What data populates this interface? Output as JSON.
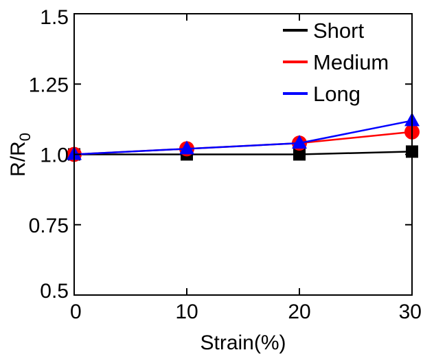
{
  "chart_data": {
    "type": "line",
    "xlabel": "Strain(%)",
    "ylabel": {
      "main": "R/R",
      "sub": "0"
    },
    "xlim": [
      0,
      30
    ],
    "ylim": [
      0.5,
      1.5
    ],
    "xticks": [
      0,
      10,
      20,
      30
    ],
    "xtick_labels": [
      "0",
      "10",
      "20",
      "30"
    ],
    "yticks": [
      0.5,
      0.75,
      1.0,
      1.25,
      1.5
    ],
    "ytick_labels": [
      "0.5",
      "0.75",
      "1.0",
      "1.25",
      "1.5"
    ],
    "grid": false,
    "legend_position": "top-right",
    "x": [
      0,
      10,
      20,
      30
    ],
    "series": [
      {
        "name": "Short",
        "color": "#000000",
        "marker": "square",
        "values": [
          1.0,
          1.0,
          1.0,
          1.01
        ]
      },
      {
        "name": "Medium",
        "color": "#ff0000",
        "marker": "circle",
        "values": [
          1.0,
          1.02,
          1.04,
          1.08
        ]
      },
      {
        "name": "Long",
        "color": "#0000ff",
        "marker": "triangle",
        "values": [
          1.0,
          1.02,
          1.04,
          1.12
        ]
      }
    ]
  }
}
